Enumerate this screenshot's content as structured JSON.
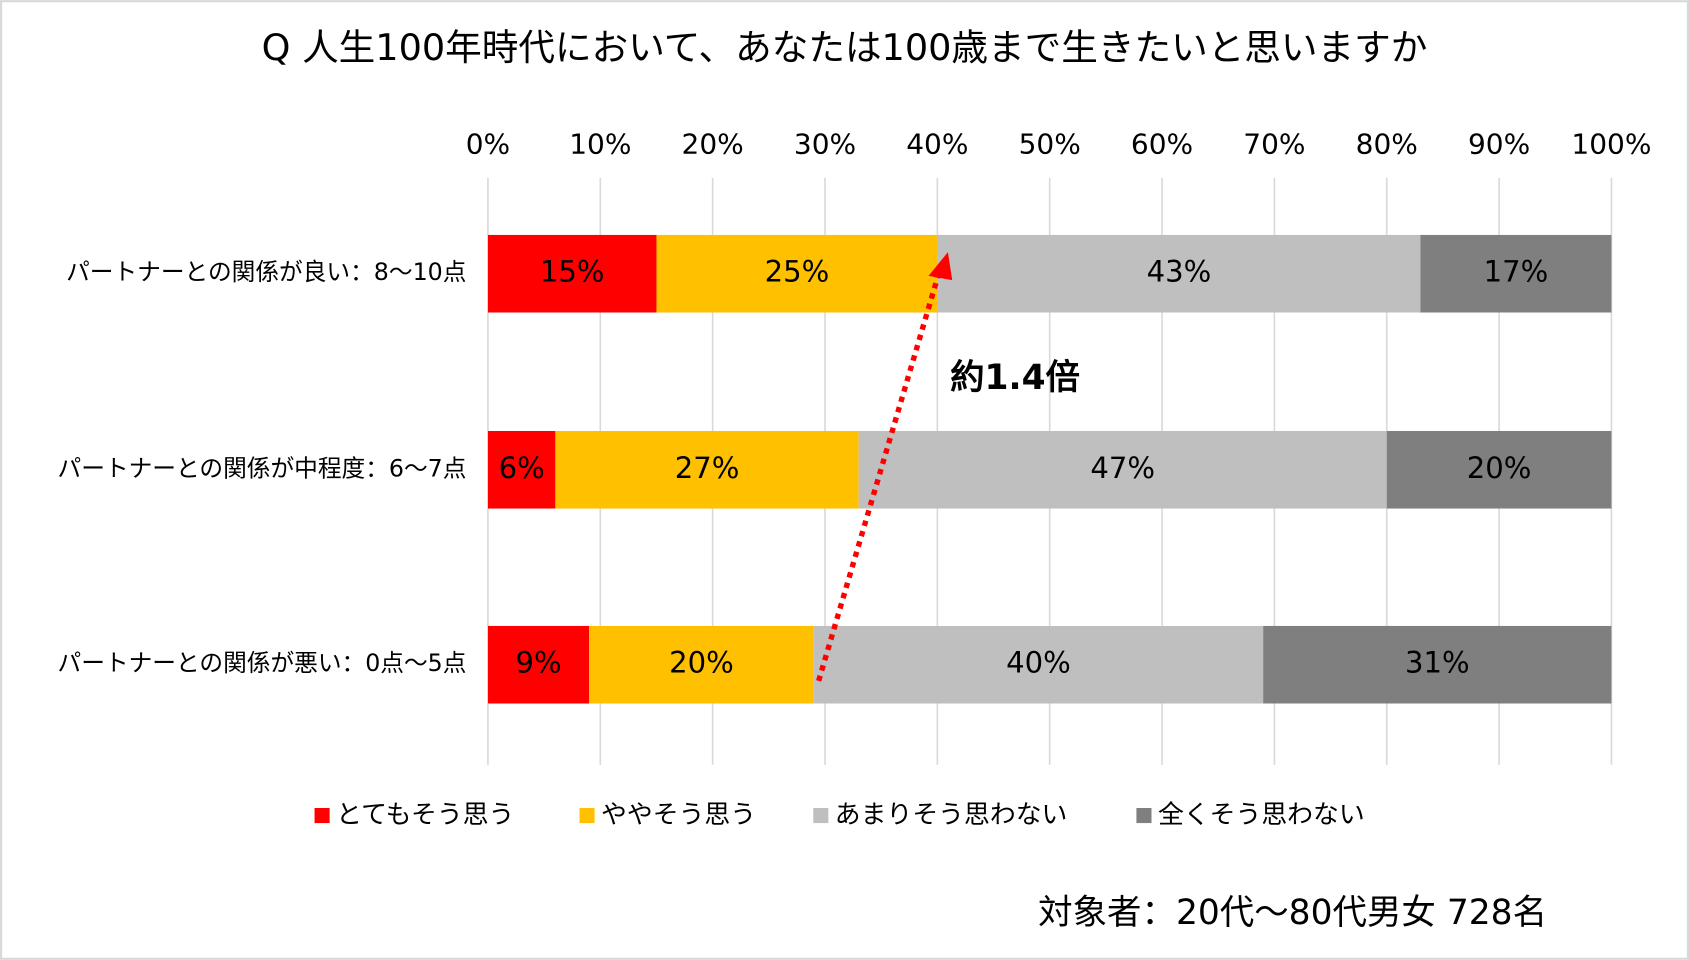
{
  "chart_data": {
    "type": "stacked-bar-horizontal",
    "title": "Q 人生100年時代において、あなたは100歳まで生きたいと思いますか",
    "categories": [
      "パートナーとの関係が良い：8～10点",
      "パートナーとの関係が中程度：6～7点",
      "パートナーとの関係が悪い：0点～5点"
    ],
    "series": [
      {
        "name": "とてもそう思う",
        "color": "#ff0000",
        "label_color": "#ffffff",
        "values": [
          15,
          6,
          9
        ],
        "value_labels": [
          "15%",
          "6%",
          "9%"
        ]
      },
      {
        "name": "ややそう思う",
        "color": "#ffc000",
        "label_color": "#000000",
        "values": [
          25,
          27,
          20
        ],
        "value_labels": [
          "25%",
          "27%",
          "20%"
        ]
      },
      {
        "name": "あまりそう思わない",
        "color": "#bfbfbf",
        "label_color": "#000000",
        "values": [
          43,
          47,
          40
        ],
        "value_labels": [
          "43%",
          "47%",
          "40%"
        ]
      },
      {
        "name": "全くそう思わない",
        "color": "#7f7f7f",
        "label_color": "#ffffff",
        "values": [
          17,
          20,
          31
        ],
        "value_labels": [
          "17%",
          "20%",
          "31%"
        ]
      }
    ],
    "xlim": [
      0,
      100
    ],
    "xticks": [
      {
        "value": 0,
        "label": "0%"
      },
      {
        "value": 10,
        "label": "10%"
      },
      {
        "value": 20,
        "label": "20%"
      },
      {
        "value": 30,
        "label": "30%"
      },
      {
        "value": 40,
        "label": "40%"
      },
      {
        "value": 50,
        "label": "50%"
      },
      {
        "value": 60,
        "label": "60%"
      },
      {
        "value": 70,
        "label": "70%"
      },
      {
        "value": 80,
        "label": "80%"
      },
      {
        "value": 90,
        "label": "90%"
      },
      {
        "value": 100,
        "label": "100%"
      }
    ],
    "grid": true,
    "legend": "bottom",
    "annotation": "約1.4倍",
    "annotation_color": "#ff0000",
    "footnote": "対象者：20代～80代男女 728名"
  }
}
